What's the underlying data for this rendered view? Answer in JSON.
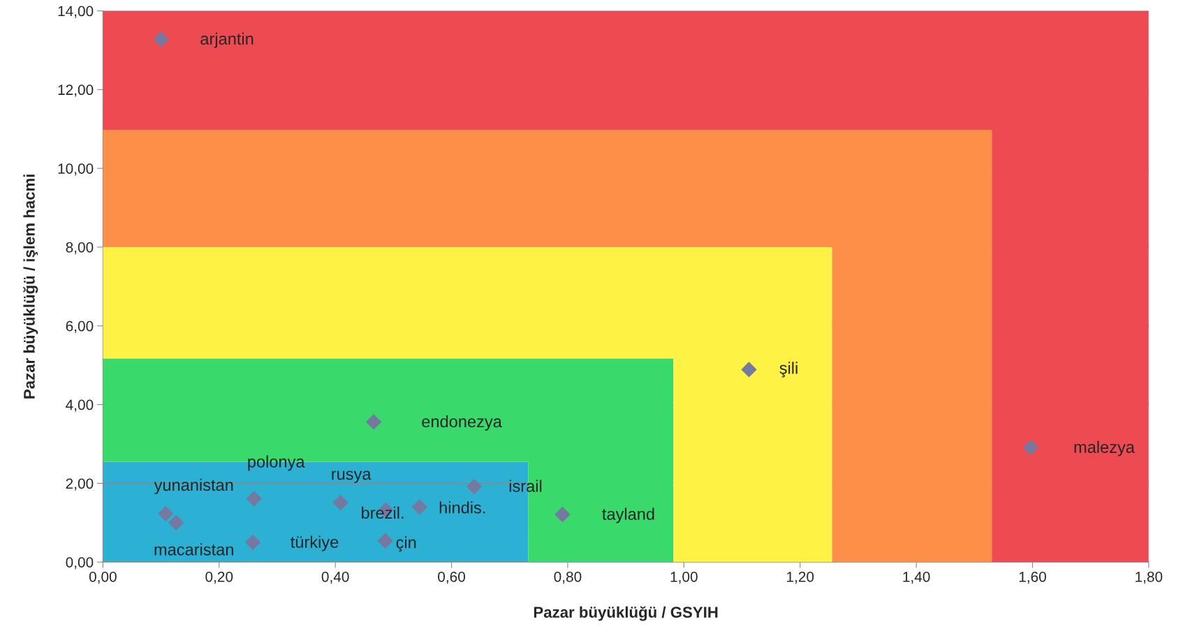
{
  "chart_data": {
    "type": "scatter",
    "xlabel": "Pazar büyüklüğü / GSYIH",
    "ylabel": "Pazar büyüklüğü / işlem hacmi",
    "xlim": [
      0,
      1.8
    ],
    "ylim": [
      0,
      14
    ],
    "xticks": [
      {
        "value": 0,
        "label": "0,00"
      },
      {
        "value": 0.2,
        "label": "0,20"
      },
      {
        "value": 0.4,
        "label": "0,40"
      },
      {
        "value": 0.6,
        "label": "0,60"
      },
      {
        "value": 0.8,
        "label": "0,80"
      },
      {
        "value": 1.0,
        "label": "1,00"
      },
      {
        "value": 1.2,
        "label": "1,20"
      },
      {
        "value": 1.4,
        "label": "1,40"
      },
      {
        "value": 1.6,
        "label": "1,60"
      },
      {
        "value": 1.8,
        "label": "1,80"
      }
    ],
    "yticks": [
      {
        "value": 0,
        "label": "0,00"
      },
      {
        "value": 2,
        "label": "2,00"
      },
      {
        "value": 4,
        "label": "4,00"
      },
      {
        "value": 6,
        "label": "6,00"
      },
      {
        "value": 8,
        "label": "8,00"
      },
      {
        "value": 10,
        "label": "10,00"
      },
      {
        "value": 12,
        "label": "12,00"
      },
      {
        "value": 14,
        "label": "14,00"
      }
    ],
    "grid": "y",
    "stacked": true,
    "series": [
      {
        "type": "area",
        "color": "#2cb0d4",
        "x": [
          0,
          0.732,
          0.732,
          0.982,
          0.982,
          1.255,
          1.255,
          1.53,
          1.53,
          1.8
        ],
        "values": [
          2.55,
          2.55,
          0,
          0,
          0,
          0,
          0,
          0,
          0,
          0
        ]
      },
      {
        "type": "area",
        "color": "#39d96c",
        "x": [
          0,
          0.732,
          0.732,
          0.982,
          0.982,
          1.255,
          1.255,
          1.53,
          1.53,
          1.8
        ],
        "values": [
          2.62,
          2.62,
          5.17,
          5.17,
          0,
          0,
          0,
          0,
          0,
          0
        ]
      },
      {
        "type": "area",
        "color": "#fef244",
        "x": [
          0,
          0.732,
          0.732,
          0.982,
          0.982,
          1.255,
          1.255,
          1.53,
          1.53,
          1.8
        ],
        "values": [
          2.83,
          2.83,
          2.83,
          2.83,
          8,
          8,
          0,
          0,
          0,
          0
        ]
      },
      {
        "type": "area",
        "color": "#fd8f49",
        "x": [
          0,
          0.732,
          0.732,
          0.982,
          0.982,
          1.255,
          1.255,
          1.53,
          1.53,
          1.8
        ],
        "values": [
          2.98,
          2.98,
          2.98,
          2.98,
          2.98,
          2.98,
          10.98,
          10.98,
          0,
          0
        ]
      },
      {
        "type": "area",
        "color": "#ee4a52",
        "x": [
          0,
          0.732,
          0.732,
          0.982,
          0.982,
          1.255,
          1.255,
          1.53,
          1.53,
          1.8
        ],
        "values": [
          3.02,
          3.02,
          3.02,
          3.02,
          3.02,
          3.02,
          3.02,
          3.02,
          14,
          14
        ]
      },
      {
        "marker": "diamond",
        "color": "#75789f",
        "x": [
          0.1,
          0.108,
          0.126,
          0.26,
          0.258,
          0.409,
          0.487,
          0.486,
          0.545,
          0.639,
          0.466,
          0.791,
          1.112,
          1.597
        ],
        "values": [
          13.28,
          1.23,
          1.0,
          1.61,
          0.5,
          1.51,
          1.32,
          0.54,
          1.4,
          1.92,
          3.56,
          1.21,
          4.89,
          2.91
        ]
      }
    ],
    "annotations": [
      {
        "text": "arjantin",
        "x": 0.1,
        "y": 13.28
      },
      {
        "text": "yunanistan",
        "x": 0.108,
        "y": 1.23
      },
      {
        "text": "macaristan",
        "x": 0.126,
        "y": 1.0
      },
      {
        "text": "polonya",
        "x": 0.26,
        "y": 1.61
      },
      {
        "text": "türkiye",
        "x": 0.258,
        "y": 0.5
      },
      {
        "text": "rusya",
        "x": 0.409,
        "y": 1.51
      },
      {
        "text": "brezil.",
        "x": 0.487,
        "y": 1.32
      },
      {
        "text": "çin",
        "x": 0.486,
        "y": 0.54
      },
      {
        "text": "hindis.",
        "x": 0.545,
        "y": 1.4
      },
      {
        "text": "israil",
        "x": 0.639,
        "y": 1.92
      },
      {
        "text": "endonezya",
        "x": 0.466,
        "y": 3.56
      },
      {
        "text": "tayland",
        "x": 0.791,
        "y": 1.21
      },
      {
        "text": "şili",
        "x": 1.112,
        "y": 4.89
      },
      {
        "text": "malezya",
        "x": 1.597,
        "y": 2.91
      }
    ]
  }
}
